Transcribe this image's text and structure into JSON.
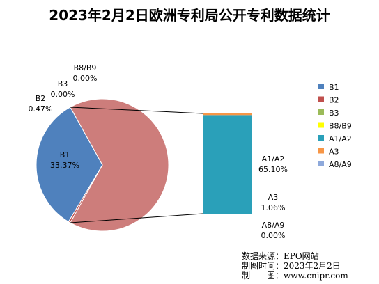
{
  "chart_data": {
    "type": "pie",
    "title": "2023年2月2日欧洲专利局公开专利数据统计",
    "slices": [
      {
        "name": "B1",
        "label": "B1",
        "percent_text": "33.37%",
        "value": 33.37,
        "color": "#4F81BD"
      },
      {
        "name": "B2",
        "label": "B2",
        "percent_text": "0.47%",
        "value": 0.47,
        "color": "#C0504D"
      },
      {
        "name": "B3",
        "label": "B3",
        "percent_text": "0.00%",
        "value": 0.0,
        "color": "#9BBB59"
      },
      {
        "name": "B8/B9",
        "label": "B8/B9",
        "percent_text": "0.00%",
        "value": 0.0,
        "color": "#FFFF00"
      },
      {
        "name": "A1/A2",
        "label": "A1/A2",
        "percent_text": "65.10%",
        "value": 65.1,
        "color": "#2AA0B9"
      },
      {
        "name": "A3",
        "label": "A3",
        "percent_text": "1.06%",
        "value": 1.06,
        "color": "#F79646"
      },
      {
        "name": "A8/A9",
        "label": "A8/A9",
        "percent_text": "0.00%",
        "value": 0.0,
        "color": "#8EA9DB"
      }
    ],
    "pie_of_bar": {
      "pie_slices": [
        "B1",
        "B2",
        "B3",
        "B8/B9"
      ],
      "other_slice_color": "#CD7D7B",
      "bar_slices": [
        "A1/A2",
        "A3",
        "A8/A9"
      ]
    },
    "legend_position": "right"
  },
  "source_note": {
    "line1": "数据来源：EPO网站",
    "line2": "制图时间：2023年2月2日",
    "line3": "制　　图：www.cnipr.com"
  }
}
